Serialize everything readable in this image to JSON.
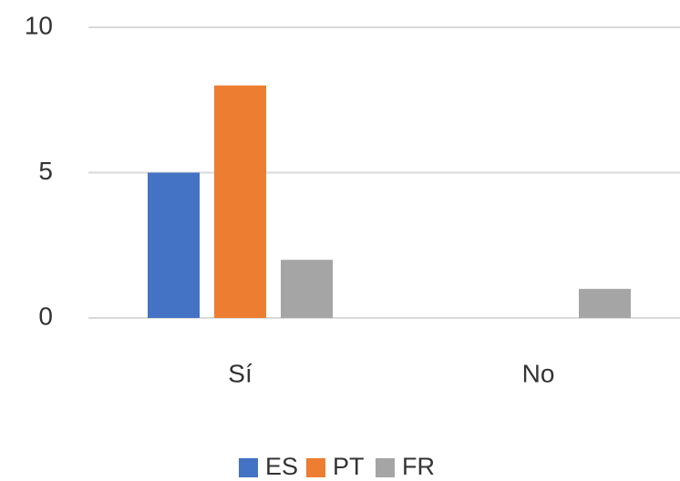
{
  "chart_data": {
    "type": "bar",
    "categories": [
      "Sí",
      "No"
    ],
    "series": [
      {
        "name": "ES",
        "color": "#4472c4",
        "values": [
          5,
          0
        ]
      },
      {
        "name": "PT",
        "color": "#ed7d31",
        "values": [
          8,
          0
        ]
      },
      {
        "name": "FR",
        "color": "#a5a5a5",
        "values": [
          2,
          1
        ]
      }
    ],
    "ylim": [
      0,
      10
    ],
    "yticks": [
      0,
      5,
      10
    ],
    "grid": true,
    "legend": "bottom"
  }
}
